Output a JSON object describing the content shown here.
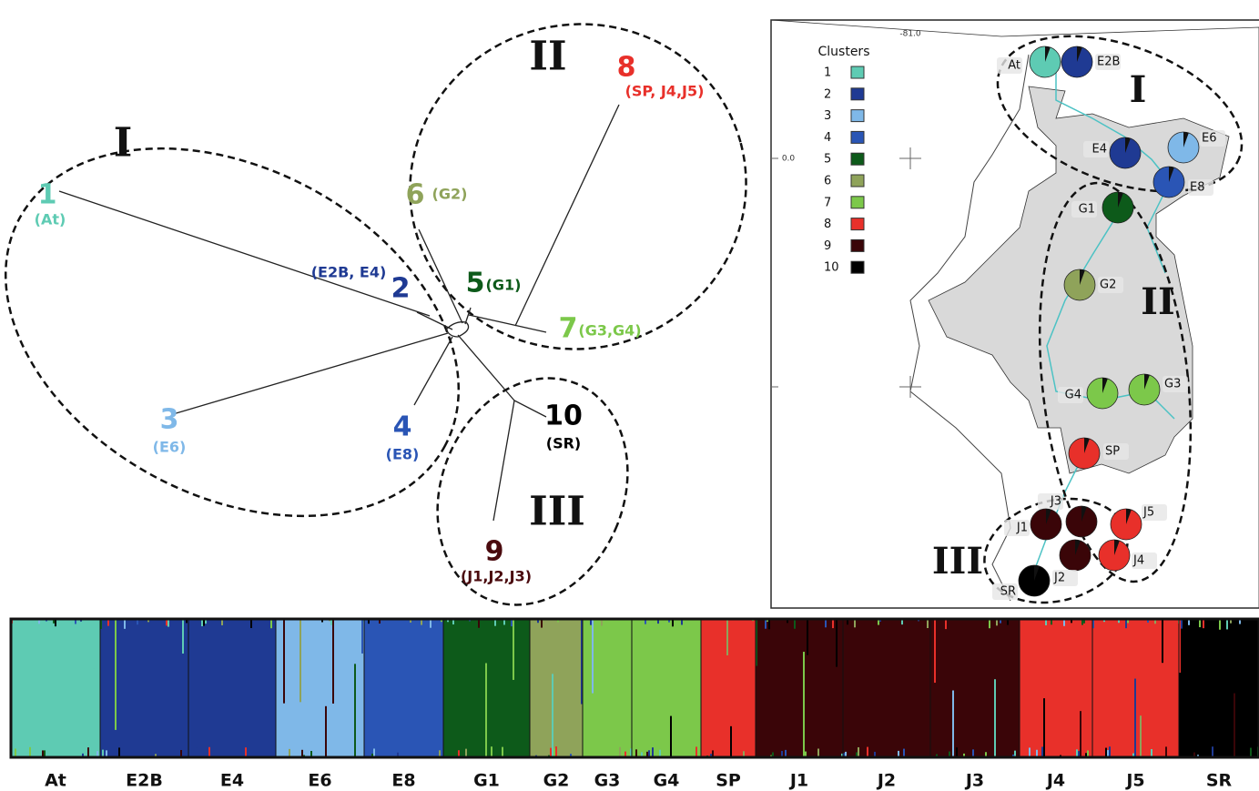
{
  "tree": {
    "groups": [
      "I",
      "II",
      "III"
    ],
    "nodes": [
      {
        "label": "1",
        "sites": "(At)",
        "color": "#5ecbb3"
      },
      {
        "label": "2",
        "sites": "(E2B, E4)",
        "color": "#1f3a93"
      },
      {
        "label": "3",
        "sites": "(E6)",
        "color": "#7fb8e8"
      },
      {
        "label": "4",
        "sites": "(E8)",
        "color": "#2a55b5"
      },
      {
        "label": "5",
        "sites": "(G1)",
        "color": "#0d5a1a"
      },
      {
        "label": "6",
        "sites": "(G2)",
        "color": "#8fa35a"
      },
      {
        "label": "7",
        "sites": "(G3,G4)",
        "color": "#7cc84a"
      },
      {
        "label": "8",
        "sites": "(SP, J4,J5)",
        "color": "#e8302a"
      },
      {
        "label": "9",
        "sites": "(J1,J2,J3)",
        "color": "#4a0a0e"
      },
      {
        "label": "10",
        "sites": "(SR)",
        "color": "#000000"
      }
    ]
  },
  "map": {
    "legend_title": "Clusters",
    "coords": [
      "-81.0",
      "0.0"
    ],
    "groups": [
      "I",
      "II",
      "III"
    ],
    "clusters": [
      {
        "label": "1",
        "color": "#5ecbb3"
      },
      {
        "label": "2",
        "color": "#1f3a93"
      },
      {
        "label": "3",
        "color": "#7fb8e8"
      },
      {
        "label": "4",
        "color": "#2a55b5"
      },
      {
        "label": "5",
        "color": "#0d5a1a"
      },
      {
        "label": "6",
        "color": "#8fa35a"
      },
      {
        "label": "7",
        "color": "#7cc84a"
      },
      {
        "label": "8",
        "color": "#e8302a"
      },
      {
        "label": "9",
        "color": "#3a0508"
      },
      {
        "label": "10",
        "color": "#000000"
      }
    ],
    "sites": [
      {
        "label": "At",
        "color": "#5ecbb3"
      },
      {
        "label": "E2B",
        "color": "#1f3a93"
      },
      {
        "label": "E4",
        "color": "#1f3a93"
      },
      {
        "label": "E6",
        "color": "#7fb8e8"
      },
      {
        "label": "E8",
        "color": "#2a55b5"
      },
      {
        "label": "G1",
        "color": "#0d5a1a"
      },
      {
        "label": "G2",
        "color": "#8fa35a"
      },
      {
        "label": "G4",
        "color": "#7cc84a"
      },
      {
        "label": "G3",
        "color": "#7cc84a"
      },
      {
        "label": "SP",
        "color": "#e8302a"
      },
      {
        "label": "J3",
        "color": "#3a0508"
      },
      {
        "label": "J1",
        "color": "#3a0508"
      },
      {
        "label": "J5",
        "color": "#e8302a"
      },
      {
        "label": "J2",
        "color": "#3a0508"
      },
      {
        "label": "J4",
        "color": "#e8302a"
      },
      {
        "label": "SR",
        "color": "#000000"
      }
    ]
  },
  "structure": {
    "populations": [
      {
        "label": "At",
        "color": "#5ecbb3"
      },
      {
        "label": "E2B",
        "color": "#1f3a93"
      },
      {
        "label": "E4",
        "color": "#1f3a93"
      },
      {
        "label": "E6",
        "color": "#7fb8e8"
      },
      {
        "label": "E8",
        "color": "#2a55b5"
      },
      {
        "label": "G1",
        "color": "#0d5a1a"
      },
      {
        "label": "G2",
        "color": "#8fa35a"
      },
      {
        "label": "G3",
        "color": "#7cc84a"
      },
      {
        "label": "G4",
        "color": "#7cc84a"
      },
      {
        "label": "SP",
        "color": "#e8302a"
      },
      {
        "label": "J1",
        "color": "#3a0508"
      },
      {
        "label": "J2",
        "color": "#3a0508"
      },
      {
        "label": "J3",
        "color": "#3a0508"
      },
      {
        "label": "J4",
        "color": "#e8302a"
      },
      {
        "label": "J5",
        "color": "#e8302a"
      },
      {
        "label": "SR",
        "color": "#000000"
      }
    ]
  }
}
